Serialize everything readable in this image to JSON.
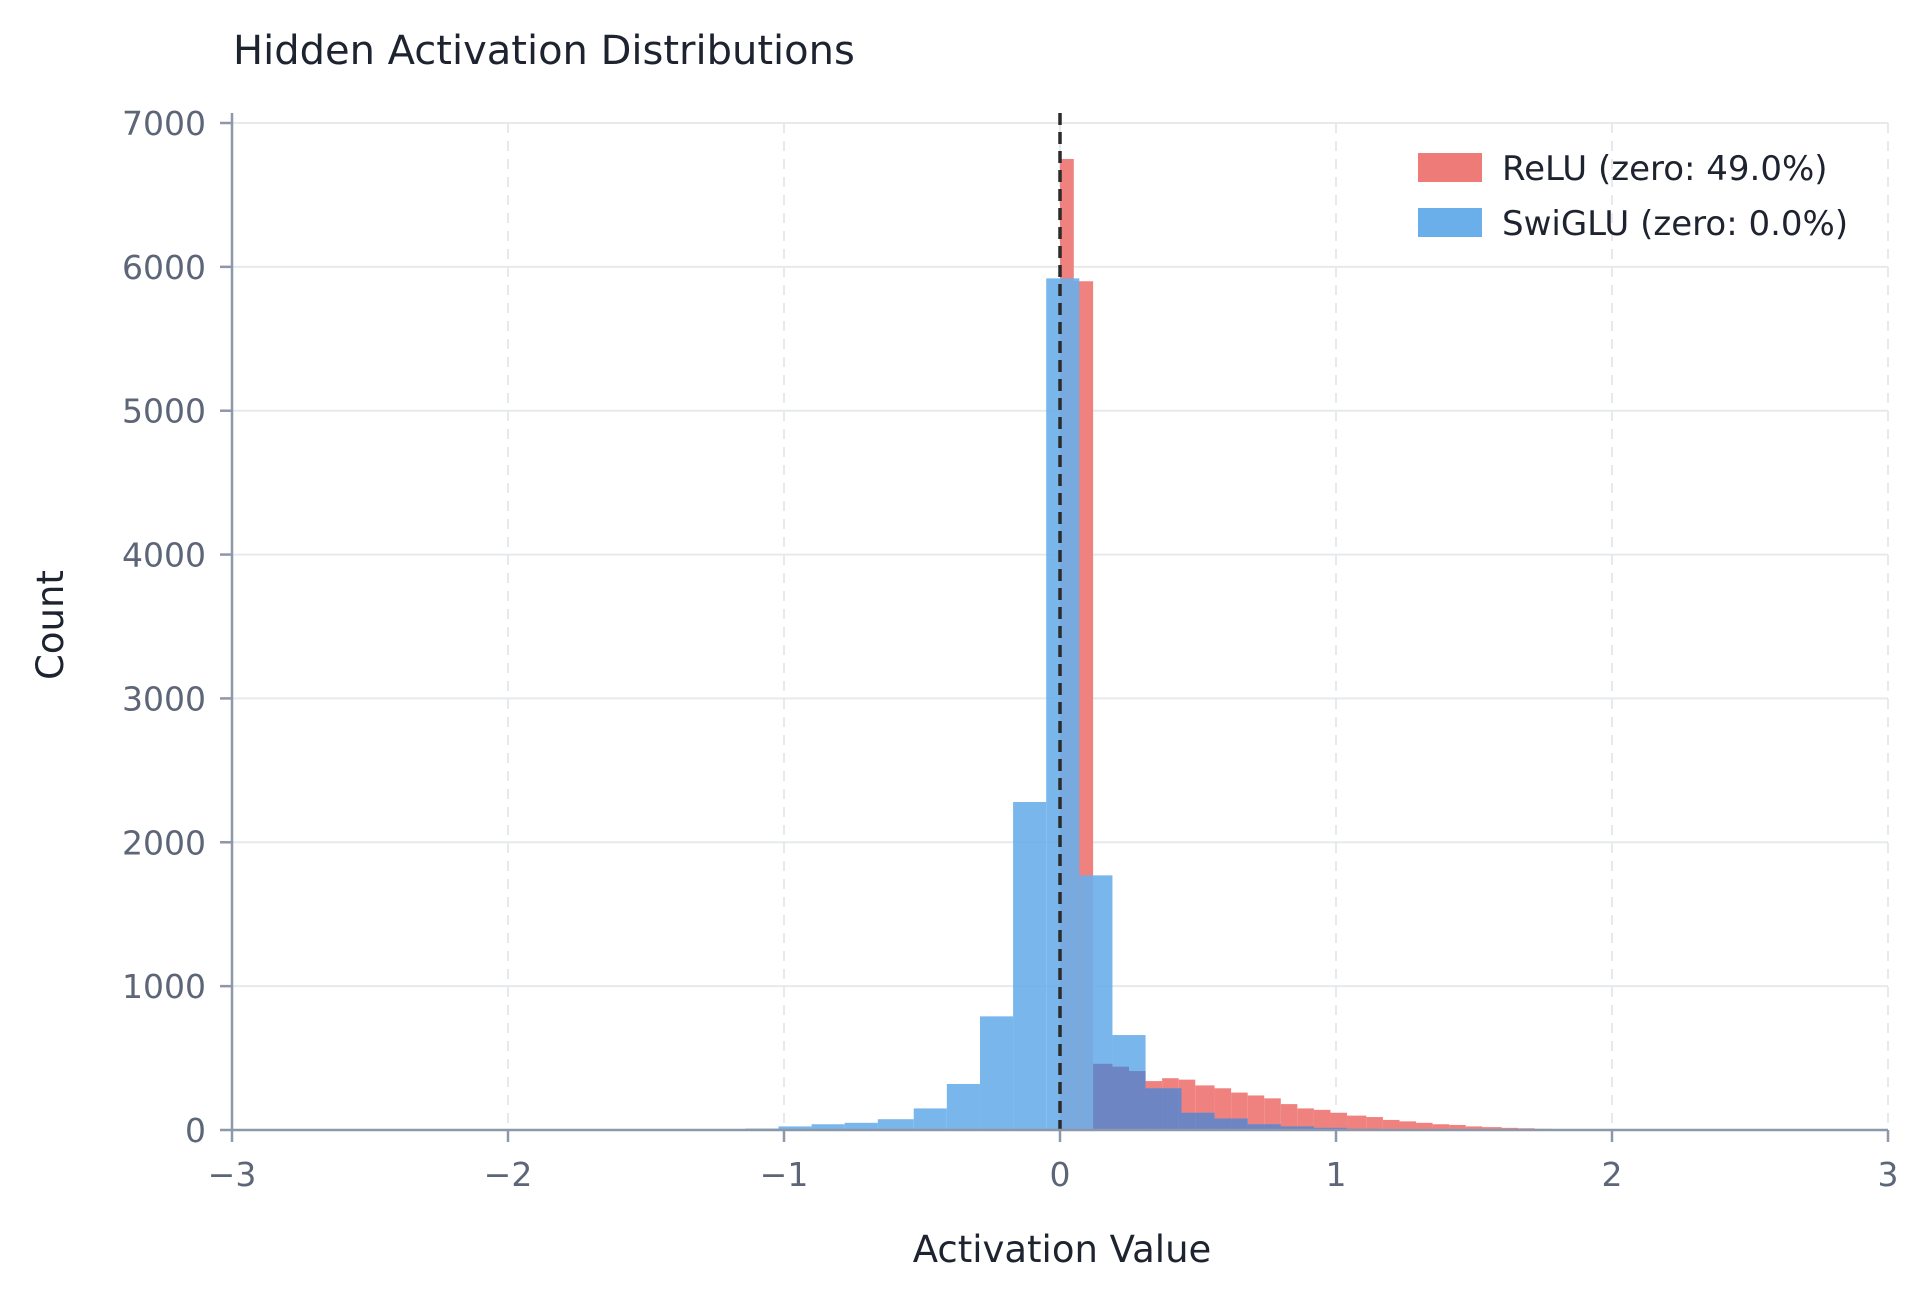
{
  "chart_data": {
    "type": "histogram",
    "title": "Hidden Activation Distributions",
    "xlabel": "Activation Value",
    "ylabel": "Count",
    "xlim": [
      -3,
      3
    ],
    "ylim": [
      0,
      7000
    ],
    "xticks": [
      -3,
      -2,
      -1,
      0,
      1,
      2,
      3
    ],
    "xtick_labels": [
      "−3",
      "−2",
      "−1",
      "0",
      "1",
      "2",
      "3"
    ],
    "yticks": [
      0,
      1000,
      2000,
      3000,
      4000,
      5000,
      6000,
      7000
    ],
    "ytick_labels": [
      "0",
      "1000",
      "2000",
      "3000",
      "4000",
      "5000",
      "6000",
      "7000"
    ],
    "grid": true,
    "legend_position": "top-right",
    "reference_line": {
      "x": 0,
      "style": "dashed",
      "color": "#2b2b2b"
    },
    "series": [
      {
        "name": "ReLU (zero: 49.0%)",
        "color": "#ee7b78",
        "bins": [
          [
            0.0,
            0.05,
            6750
          ],
          [
            0.05,
            0.12,
            5900
          ],
          [
            0.12,
            0.19,
            460
          ],
          [
            0.19,
            0.25,
            440
          ],
          [
            0.25,
            0.31,
            410
          ],
          [
            0.31,
            0.37,
            340
          ],
          [
            0.37,
            0.43,
            360
          ],
          [
            0.43,
            0.49,
            350
          ],
          [
            0.49,
            0.56,
            310
          ],
          [
            0.56,
            0.62,
            290
          ],
          [
            0.62,
            0.68,
            260
          ],
          [
            0.68,
            0.74,
            240
          ],
          [
            0.74,
            0.8,
            220
          ],
          [
            0.8,
            0.86,
            180
          ],
          [
            0.86,
            0.92,
            150
          ],
          [
            0.92,
            0.98,
            140
          ],
          [
            0.98,
            1.04,
            120
          ],
          [
            1.04,
            1.11,
            100
          ],
          [
            1.11,
            1.17,
            90
          ],
          [
            1.17,
            1.23,
            70
          ],
          [
            1.23,
            1.29,
            60
          ],
          [
            1.29,
            1.35,
            50
          ],
          [
            1.35,
            1.41,
            40
          ],
          [
            1.41,
            1.47,
            35
          ],
          [
            1.47,
            1.53,
            25
          ],
          [
            1.53,
            1.6,
            20
          ],
          [
            1.6,
            1.66,
            15
          ],
          [
            1.66,
            1.72,
            12
          ],
          [
            1.72,
            1.78,
            8
          ],
          [
            1.78,
            1.84,
            5
          ]
        ]
      },
      {
        "name": "SwiGLU (zero: 0.0%)",
        "color": "#6aaeea",
        "bins": [
          [
            -1.14,
            -1.02,
            10
          ],
          [
            -1.02,
            -0.9,
            25
          ],
          [
            -0.9,
            -0.78,
            40
          ],
          [
            -0.78,
            -0.66,
            50
          ],
          [
            -0.66,
            -0.53,
            75
          ],
          [
            -0.53,
            -0.41,
            150
          ],
          [
            -0.41,
            -0.29,
            320
          ],
          [
            -0.29,
            -0.17,
            790
          ],
          [
            -0.17,
            -0.05,
            2280
          ],
          [
            -0.05,
            0.07,
            5920
          ],
          [
            0.07,
            0.19,
            1770
          ],
          [
            0.19,
            0.31,
            660
          ],
          [
            0.31,
            0.44,
            290
          ],
          [
            0.44,
            0.56,
            120
          ],
          [
            0.56,
            0.68,
            80
          ],
          [
            0.68,
            0.8,
            40
          ],
          [
            0.8,
            0.92,
            25
          ],
          [
            0.92,
            1.04,
            15
          ],
          [
            1.04,
            1.16,
            8
          ],
          [
            1.16,
            1.29,
            5
          ]
        ]
      }
    ]
  }
}
